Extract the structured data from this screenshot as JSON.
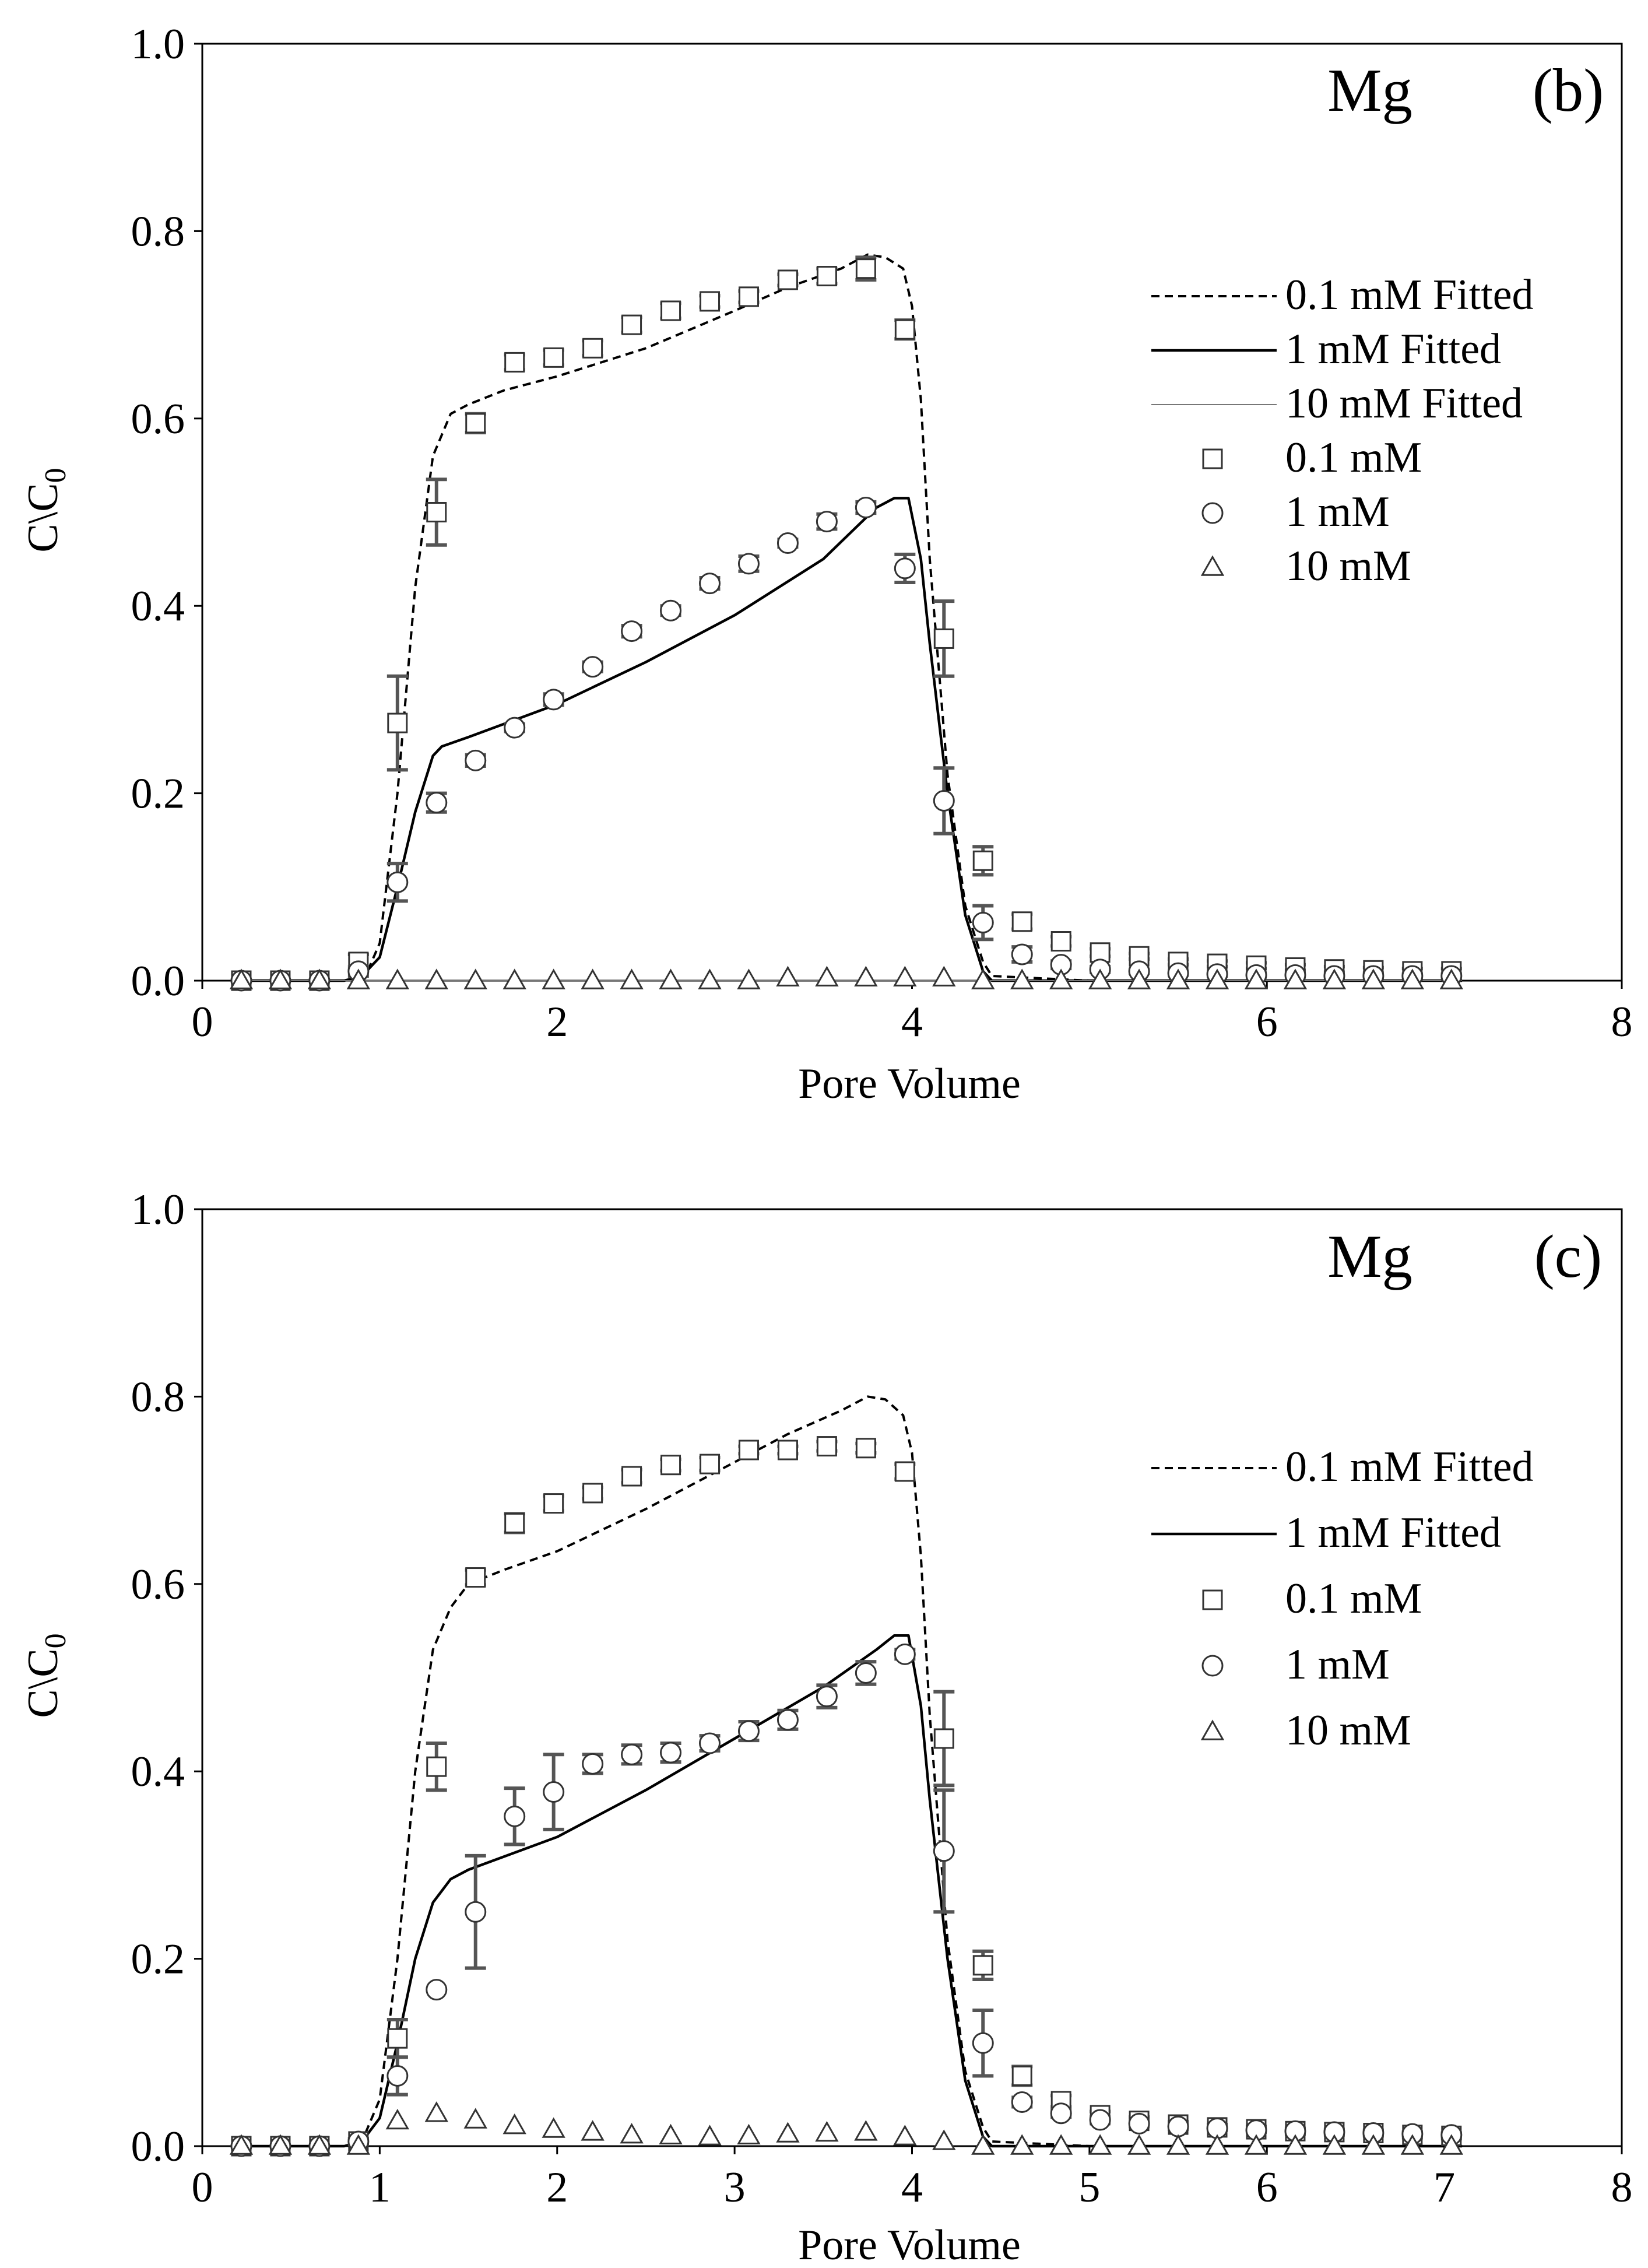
{
  "chart_data": [
    {
      "type": "line",
      "panel_label": "(b)",
      "element_label": "Mg",
      "xlabel": "Pore Volume",
      "ylabel_main": "C\\C",
      "ylabel_sub": "0",
      "xlim": [
        0,
        8
      ],
      "ylim": [
        0,
        1.0
      ],
      "xticks": [
        "0",
        "2",
        "4",
        "6",
        "8"
      ],
      "xtick_values": [
        0,
        2,
        4,
        6,
        8
      ],
      "yticks": [
        "0.0",
        "0.2",
        "0.4",
        "0.6",
        "0.8",
        "1.0"
      ],
      "ytick_values": [
        0,
        0.2,
        0.4,
        0.6,
        0.8,
        1.0
      ],
      "legend": [
        "0.1 mM Fitted",
        "1 mM Fitted",
        "10 mM Fitted",
        "0.1 mM",
        "1 mM",
        "10 mM"
      ],
      "fitted": [
        {
          "name": "0.1 mM Fitted",
          "style": "dashed",
          "x": [
            0.2,
            0.8,
            0.92,
            1.0,
            1.1,
            1.2,
            1.3,
            1.4,
            1.5,
            1.7,
            2.0,
            2.5,
            3.0,
            3.3,
            3.6,
            3.75,
            3.85,
            3.95,
            4.0,
            4.05,
            4.1,
            4.2,
            4.3,
            4.4,
            4.45,
            5.0,
            7.1
          ],
          "y": [
            0,
            0,
            0.005,
            0.04,
            0.2,
            0.42,
            0.56,
            0.605,
            0.615,
            0.63,
            0.645,
            0.675,
            0.715,
            0.74,
            0.76,
            0.775,
            0.772,
            0.76,
            0.72,
            0.62,
            0.45,
            0.22,
            0.08,
            0.02,
            0.005,
            0,
            0
          ]
        },
        {
          "name": "1 mM Fitted",
          "style": "solid",
          "x": [
            0.2,
            0.8,
            0.9,
            1.0,
            1.1,
            1.2,
            1.3,
            1.35,
            1.5,
            2.0,
            2.5,
            3.0,
            3.5,
            3.8,
            3.9,
            3.98,
            4.05,
            4.1,
            4.2,
            4.3,
            4.4,
            4.45,
            5.0,
            7.1
          ],
          "y": [
            0,
            0,
            0.005,
            0.025,
            0.1,
            0.18,
            0.24,
            0.25,
            0.26,
            0.295,
            0.34,
            0.39,
            0.45,
            0.505,
            0.515,
            0.515,
            0.45,
            0.36,
            0.2,
            0.07,
            0.01,
            0,
            0,
            0
          ]
        },
        {
          "name": "10 mM Fitted",
          "style": "thin",
          "x": [
            0.2,
            7.1
          ],
          "y": [
            0,
            0
          ]
        }
      ],
      "series": [
        {
          "name": "0.1 mM",
          "marker": "square",
          "x": [
            0.22,
            0.44,
            0.66,
            0.88,
            1.1,
            1.32,
            1.54,
            1.76,
            1.98,
            2.2,
            2.42,
            2.64,
            2.86,
            3.08,
            3.3,
            3.52,
            3.74,
            3.96,
            4.18,
            4.4,
            4.62,
            4.84,
            5.06,
            5.28,
            5.5,
            5.72,
            5.94,
            6.16,
            6.38,
            6.6,
            6.82,
            7.04
          ],
          "y": [
            0,
            0,
            0,
            0.02,
            0.275,
            0.5,
            0.595,
            0.66,
            0.665,
            0.675,
            0.7,
            0.715,
            0.725,
            0.73,
            0.748,
            0.752,
            0.76,
            0.695,
            0.365,
            0.128,
            0.063,
            0.042,
            0.03,
            0.026,
            0.02,
            0.018,
            0.016,
            0.014,
            0.012,
            0.011,
            0.01,
            0.01
          ],
          "err": [
            0,
            0,
            0,
            0.008,
            0.05,
            0.035,
            0.01,
            0.008,
            0.008,
            0.008,
            0.008,
            0.008,
            0.006,
            0.006,
            0.006,
            0.008,
            0.012,
            0.01,
            0.04,
            0.015,
            0.008,
            0.005,
            0.004,
            0.003,
            0.003,
            0.003,
            0.003,
            0.003,
            0.003,
            0.003,
            0.003,
            0.003
          ]
        },
        {
          "name": "1 mM",
          "marker": "circle",
          "x": [
            0.22,
            0.44,
            0.66,
            0.88,
            1.1,
            1.32,
            1.54,
            1.76,
            1.98,
            2.2,
            2.42,
            2.64,
            2.86,
            3.08,
            3.3,
            3.52,
            3.74,
            3.96,
            4.18,
            4.4,
            4.62,
            4.84,
            5.06,
            5.28,
            5.5,
            5.72,
            5.94,
            6.16,
            6.38,
            6.6,
            6.82,
            7.04
          ],
          "y": [
            0,
            0,
            0,
            0.01,
            0.105,
            0.19,
            0.235,
            0.27,
            0.3,
            0.335,
            0.373,
            0.395,
            0.424,
            0.445,
            0.467,
            0.49,
            0.505,
            0.44,
            0.192,
            0.062,
            0.028,
            0.017,
            0.012,
            0.01,
            0.008,
            0.007,
            0.006,
            0.006,
            0.005,
            0.005,
            0.005,
            0.005
          ],
          "err": [
            0,
            0,
            0,
            0.005,
            0.02,
            0.01,
            0.006,
            0.004,
            0.006,
            0.005,
            0.006,
            0.005,
            0.006,
            0.008,
            0.004,
            0.008,
            0.006,
            0.015,
            0.035,
            0.018,
            0.008,
            0.004,
            0.003,
            0.002,
            0.002,
            0.002,
            0.002,
            0.002,
            0.002,
            0.002,
            0.002,
            0.002
          ]
        },
        {
          "name": "10 mM",
          "marker": "triangle",
          "x": [
            0.22,
            0.44,
            0.66,
            0.88,
            1.1,
            1.32,
            1.54,
            1.76,
            1.98,
            2.2,
            2.42,
            2.64,
            2.86,
            3.08,
            3.3,
            3.52,
            3.74,
            3.96,
            4.18,
            4.4,
            4.62,
            4.84,
            5.06,
            5.28,
            5.5,
            5.72,
            5.94,
            6.16,
            6.38,
            6.6,
            6.82,
            7.04
          ],
          "y": [
            0,
            0,
            0,
            0,
            0,
            0,
            0,
            0,
            0,
            0,
            0,
            0,
            0,
            0,
            0.003,
            0.003,
            0.003,
            0.003,
            0.003,
            0,
            0,
            0,
            0,
            0,
            0,
            0,
            0,
            0,
            0,
            0,
            0,
            0
          ],
          "err": [
            0,
            0,
            0,
            0,
            0,
            0,
            0,
            0,
            0,
            0,
            0,
            0,
            0,
            0,
            0,
            0,
            0,
            0,
            0,
            0,
            0,
            0,
            0,
            0,
            0,
            0,
            0,
            0,
            0,
            0,
            0,
            0
          ]
        }
      ]
    },
    {
      "type": "line",
      "panel_label": "(c)",
      "element_label": "Mg",
      "xlabel": "Pore Volume",
      "ylabel_main": "C\\C",
      "ylabel_sub": "0",
      "xlim": [
        0,
        8
      ],
      "ylim": [
        0,
        1.0
      ],
      "xticks": [
        "0",
        "1",
        "2",
        "3",
        "4",
        "5",
        "6",
        "7",
        "8"
      ],
      "xtick_values": [
        0,
        1,
        2,
        3,
        4,
        5,
        6,
        7,
        8
      ],
      "yticks": [
        "0.0",
        "0.2",
        "0.4",
        "0.6",
        "0.8",
        "1.0"
      ],
      "ytick_values": [
        0,
        0.2,
        0.4,
        0.6,
        0.8,
        1.0
      ],
      "legend": [
        "0.1 mM Fitted",
        "1 mM Fitted",
        "0.1 mM",
        "1 mM",
        "10 mM"
      ],
      "fitted": [
        {
          "name": "0.1 mM Fitted",
          "style": "dashed",
          "x": [
            0.2,
            0.8,
            0.9,
            1.0,
            1.1,
            1.2,
            1.3,
            1.4,
            1.5,
            1.7,
            2.0,
            2.5,
            3.0,
            3.3,
            3.6,
            3.75,
            3.85,
            3.95,
            4.0,
            4.05,
            4.1,
            4.2,
            4.3,
            4.4,
            4.45,
            5.0,
            7.1
          ],
          "y": [
            0,
            0,
            0.005,
            0.05,
            0.2,
            0.4,
            0.53,
            0.575,
            0.6,
            0.615,
            0.635,
            0.68,
            0.73,
            0.76,
            0.785,
            0.8,
            0.797,
            0.78,
            0.74,
            0.63,
            0.46,
            0.22,
            0.08,
            0.02,
            0.005,
            0,
            0
          ]
        },
        {
          "name": "1 mM Fitted",
          "style": "solid",
          "x": [
            0.2,
            0.8,
            0.9,
            1.0,
            1.1,
            1.2,
            1.3,
            1.4,
            1.5,
            2.0,
            2.5,
            3.0,
            3.5,
            3.8,
            3.9,
            3.98,
            4.05,
            4.1,
            4.2,
            4.3,
            4.4,
            4.45,
            5.0,
            7.1
          ],
          "y": [
            0,
            0,
            0.005,
            0.03,
            0.11,
            0.2,
            0.26,
            0.285,
            0.295,
            0.33,
            0.38,
            0.435,
            0.49,
            0.53,
            0.545,
            0.545,
            0.47,
            0.37,
            0.2,
            0.07,
            0.01,
            0,
            0,
            0
          ]
        }
      ],
      "series": [
        {
          "name": "0.1 mM",
          "marker": "square",
          "x": [
            0.22,
            0.44,
            0.66,
            0.88,
            1.1,
            1.32,
            1.54,
            1.76,
            1.98,
            2.2,
            2.42,
            2.64,
            2.86,
            3.08,
            3.3,
            3.52,
            3.74,
            3.96,
            4.18,
            4.4,
            4.62,
            4.84,
            5.06,
            5.28,
            5.5,
            5.72,
            5.94,
            6.16,
            6.38,
            6.6,
            6.82,
            7.04
          ],
          "y": [
            0,
            0,
            0,
            0.005,
            0.115,
            0.405,
            0.607,
            0.665,
            0.686,
            0.697,
            0.715,
            0.727,
            0.728,
            0.743,
            0.743,
            0.747,
            0.745,
            0.72,
            0.435,
            0.193,
            0.075,
            0.048,
            0.033,
            0.027,
            0.023,
            0.02,
            0.018,
            0.016,
            0.015,
            0.014,
            0.012,
            0.011
          ],
          "err": [
            0,
            0,
            0,
            0.003,
            0.02,
            0.025,
            0.008,
            0.01,
            0.008,
            0.006,
            0.007,
            0.006,
            0.007,
            0.004,
            0.004,
            0.005,
            0.005,
            0.008,
            0.05,
            0.015,
            0.01,
            0.006,
            0.004,
            0.004,
            0.003,
            0.003,
            0.003,
            0.003,
            0.003,
            0.003,
            0.003,
            0.003
          ]
        },
        {
          "name": "1 mM",
          "marker": "circle",
          "x": [
            0.22,
            0.44,
            0.66,
            0.88,
            1.1,
            1.32,
            1.54,
            1.76,
            1.98,
            2.2,
            2.42,
            2.64,
            2.86,
            3.08,
            3.3,
            3.52,
            3.74,
            3.96,
            4.18,
            4.4,
            4.62,
            4.84,
            5.06,
            5.28,
            5.5,
            5.72,
            5.94,
            6.16,
            6.38,
            6.6,
            6.82,
            7.04
          ],
          "y": [
            0,
            0,
            0,
            0.005,
            0.075,
            0.167,
            0.25,
            0.352,
            0.378,
            0.408,
            0.418,
            0.42,
            0.43,
            0.443,
            0.455,
            0.48,
            0.505,
            0.525,
            0.315,
            0.11,
            0.047,
            0.035,
            0.028,
            0.024,
            0.021,
            0.019,
            0.017,
            0.016,
            0.015,
            0.014,
            0.013,
            0.012
          ],
          "err": [
            0,
            0,
            0,
            0.003,
            0.02,
            0,
            0.06,
            0.03,
            0.04,
            0.01,
            0.01,
            0.01,
            0.008,
            0.01,
            0.01,
            0.012,
            0.012,
            0.005,
            0.065,
            0.035,
            0.005,
            0.004,
            0.003,
            0.003,
            0.003,
            0.002,
            0.002,
            0.002,
            0.002,
            0.002,
            0.002,
            0.002
          ]
        },
        {
          "name": "10 mM",
          "marker": "triangle",
          "x": [
            0.22,
            0.44,
            0.66,
            0.88,
            1.1,
            1.32,
            1.54,
            1.76,
            1.98,
            2.2,
            2.42,
            2.64,
            2.86,
            3.08,
            3.3,
            3.52,
            3.74,
            3.96,
            4.18,
            4.4,
            4.62,
            4.84,
            5.06,
            5.28,
            5.5,
            5.72,
            5.94,
            6.16,
            6.38,
            6.6,
            6.82,
            7.04
          ],
          "y": [
            0,
            0,
            0,
            0,
            0.027,
            0.035,
            0.028,
            0.022,
            0.018,
            0.015,
            0.012,
            0.011,
            0.01,
            0.011,
            0.013,
            0.014,
            0.015,
            0.01,
            0.005,
            0,
            0,
            0,
            0,
            0,
            0,
            0,
            0,
            0,
            0,
            0,
            0,
            0
          ],
          "err": [
            0,
            0,
            0,
            0,
            0,
            0,
            0,
            0,
            0,
            0,
            0,
            0,
            0,
            0,
            0,
            0,
            0,
            0,
            0,
            0,
            0,
            0,
            0,
            0,
            0,
            0,
            0,
            0,
            0,
            0,
            0,
            0
          ]
        }
      ]
    }
  ]
}
